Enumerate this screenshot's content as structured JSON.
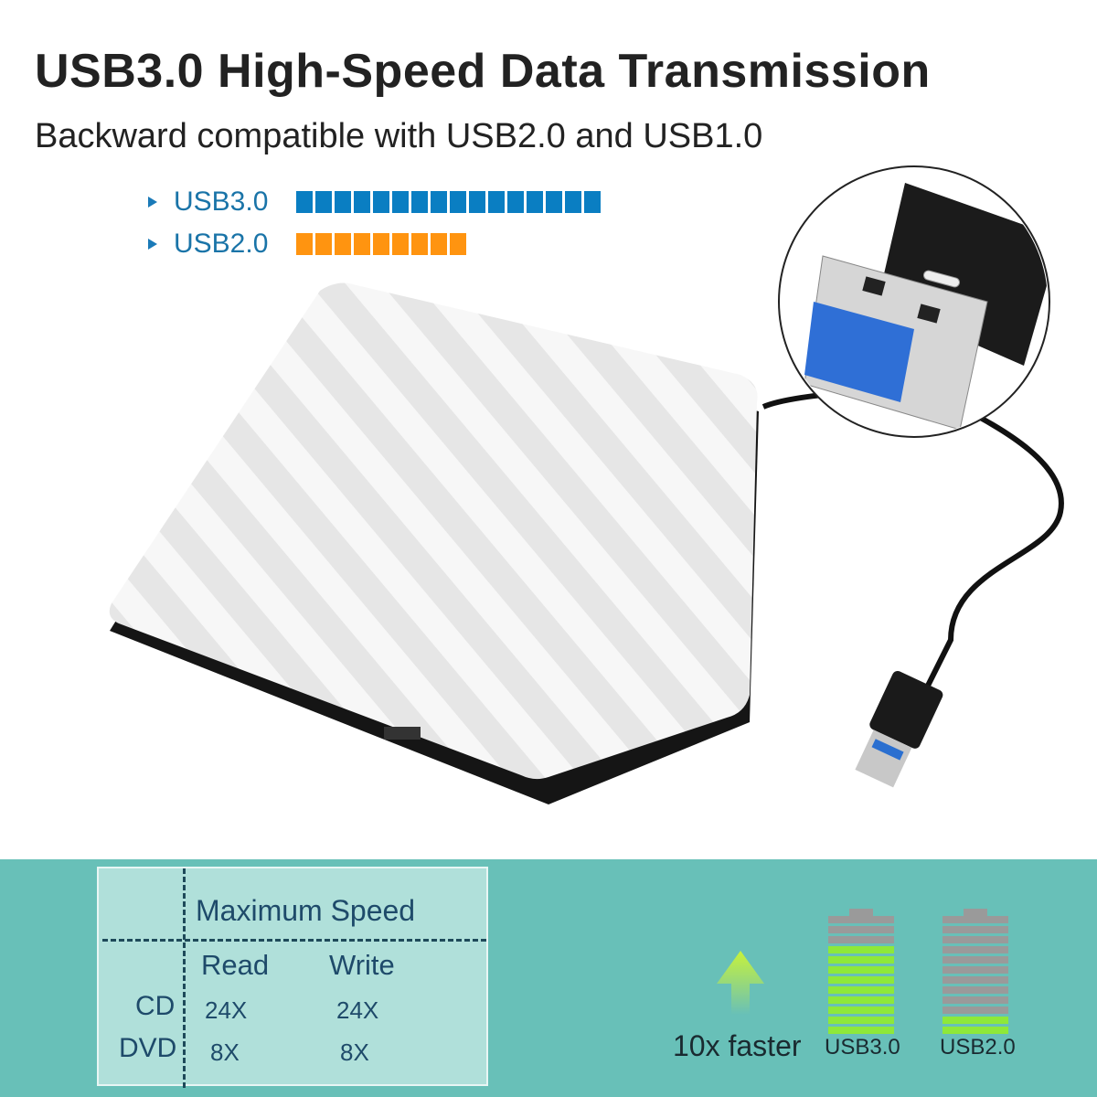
{
  "header": {
    "title": "USB3.0 High-Speed Data Transmission",
    "subtitle": "Backward compatible with USB2.0 and USB1.0"
  },
  "speed_comparison": [
    {
      "label": "USB3.0",
      "blocks": 16,
      "color": "#0a7ec2"
    },
    {
      "label": "USB2.0",
      "blocks": 9,
      "color": "#ff9410"
    }
  ],
  "spec_table": {
    "heading": "Maximum Speed",
    "columns": [
      "Read",
      "Write"
    ],
    "rows": [
      {
        "label": "CD",
        "read": "24X",
        "write": "24X"
      },
      {
        "label": "DVD",
        "read": "8X",
        "write": "8X"
      }
    ]
  },
  "comparison": {
    "caption": "10x faster",
    "batteries": [
      {
        "label": "USB3.0",
        "filled_bars": 9,
        "total_bars": 12
      },
      {
        "label": "USB2.0",
        "filled_bars": 2,
        "total_bars": 12
      }
    ],
    "fill_color": "#8ee83a",
    "empty_color": "#9a9a9a",
    "arrow_color": "#b6f03a"
  },
  "colors": {
    "panel": "#68c0b8",
    "table_bg": "#b0e0da",
    "text_dark": "#1e4a6a"
  }
}
